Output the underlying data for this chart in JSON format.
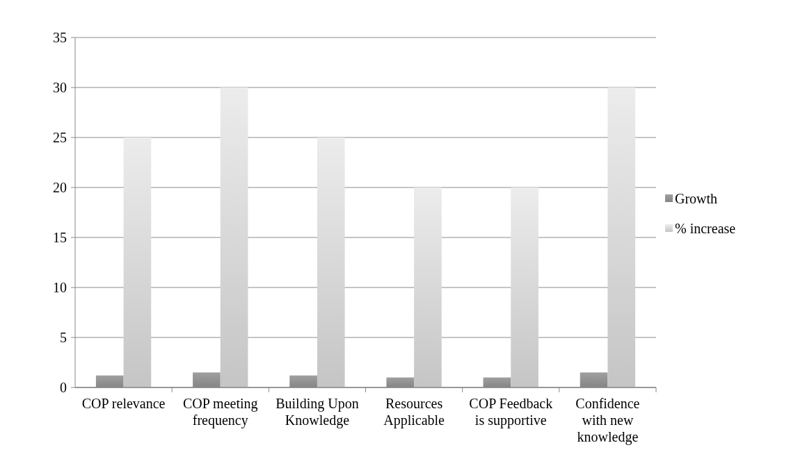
{
  "chart_data": {
    "type": "bar",
    "categories": [
      "COP relevance",
      "COP meeting frequency",
      "Building Upon Knowledge",
      "Resources Applicable",
      "COP Feedback is supportive",
      "Confidence with new knowledge"
    ],
    "series": [
      {
        "name": "Growth",
        "color": "#8f8f8f",
        "values": [
          1.2,
          1.5,
          1.2,
          1,
          1,
          1.5
        ]
      },
      {
        "name": "% increase",
        "color": "#d4d4d4",
        "values": [
          25,
          30,
          25,
          20,
          20,
          30
        ]
      }
    ],
    "ylim": [
      0,
      35
    ],
    "yticks": [
      0,
      5,
      10,
      15,
      20,
      25,
      30,
      35
    ],
    "grid": "y",
    "legend": "right"
  }
}
